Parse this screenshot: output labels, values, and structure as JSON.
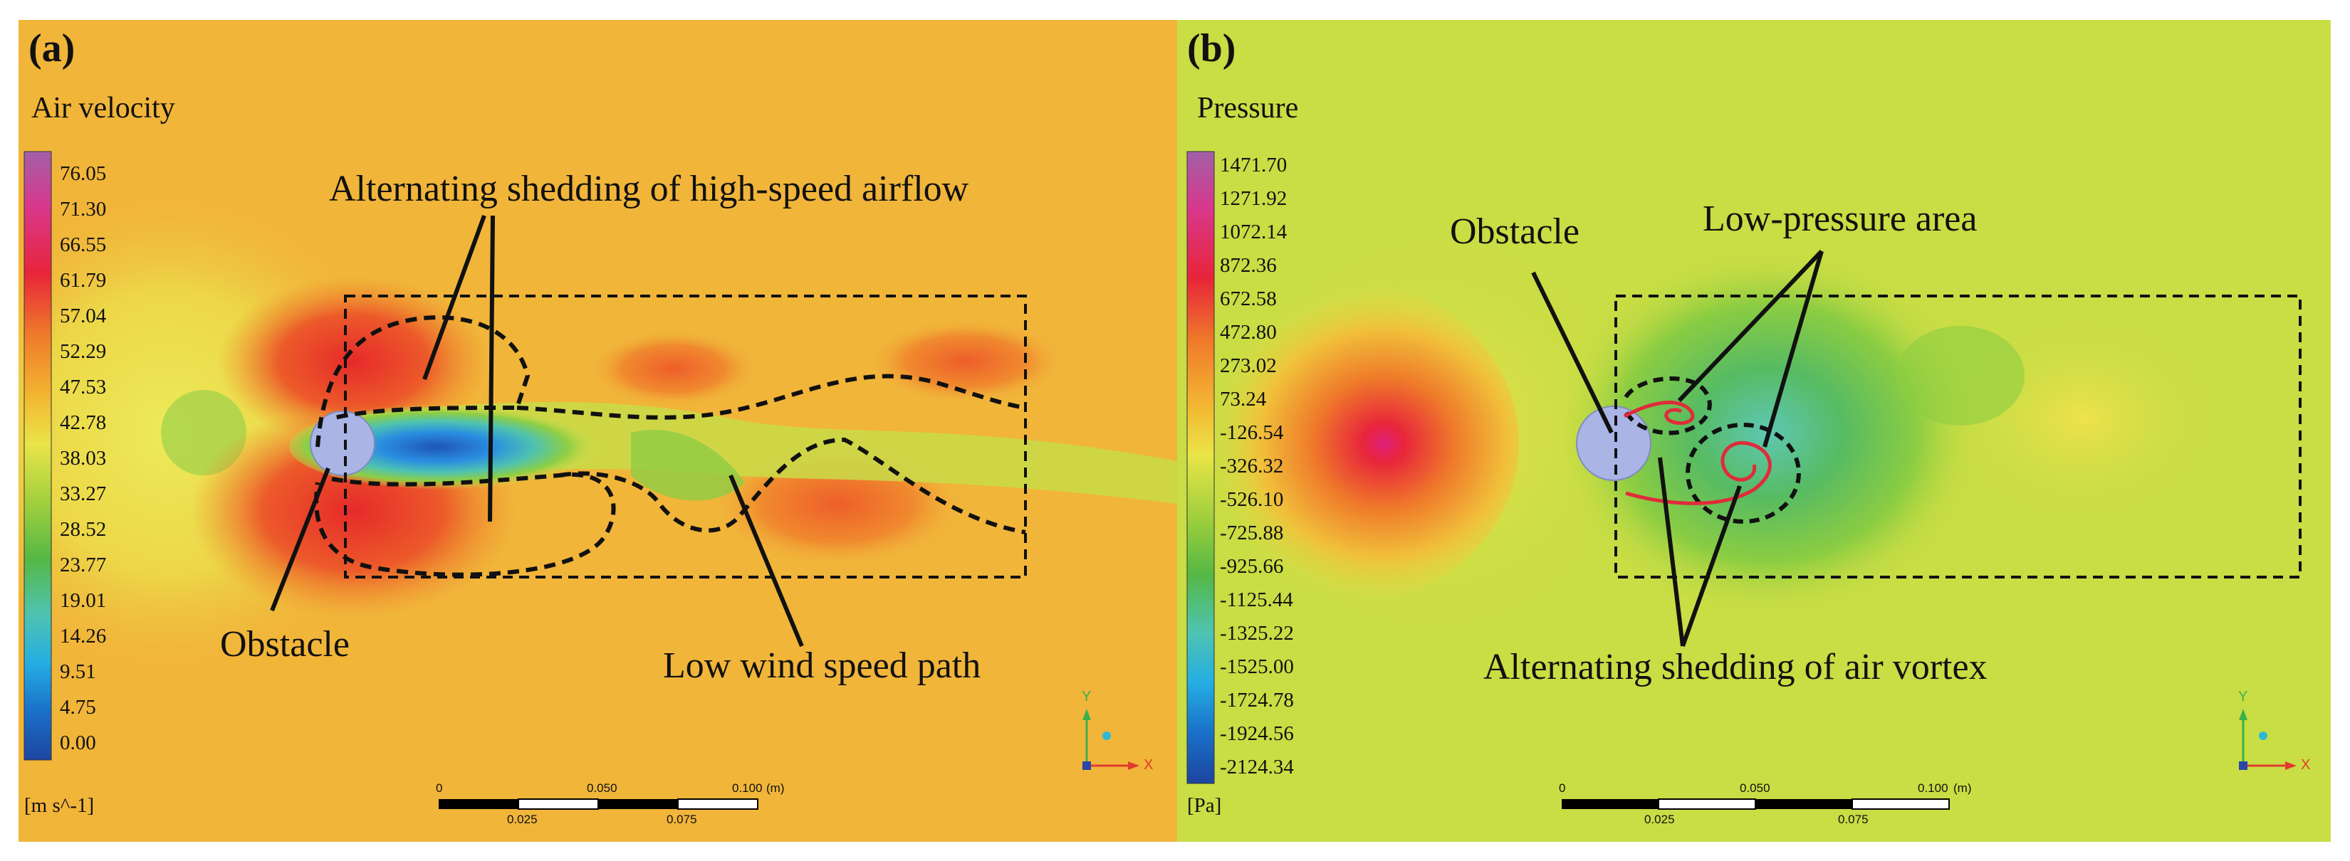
{
  "panels": [
    {
      "id": "a",
      "label": "(a)",
      "quantity": "Air velocity",
      "unit": "[m s^-1]",
      "colorbar_ticks": [
        "76.05",
        "71.30",
        "66.55",
        "61.79",
        "57.04",
        "52.29",
        "47.53",
        "42.78",
        "38.03",
        "33.27",
        "28.52",
        "23.77",
        "19.01",
        "14.26",
        "9.51",
        "4.75",
        "0.00"
      ],
      "annotations": {
        "shedding": "Alternating shedding of high-speed airflow",
        "obstacle": "Obstacle",
        "low_wind": "Low wind speed path"
      },
      "background_color": "#f1b53a"
    },
    {
      "id": "b",
      "label": "(b)",
      "quantity": "Pressure",
      "unit": "[Pa]",
      "colorbar_ticks": [
        "1471.70",
        "1271.92",
        "1072.14",
        "872.36",
        "672.58",
        "472.80",
        "273.02",
        "73.24",
        "-126.54",
        "-326.32",
        "-526.10",
        "-725.88",
        "-925.66",
        "-1125.44",
        "-1325.22",
        "-1525.00",
        "-1724.78",
        "-1924.56",
        "-2124.34"
      ],
      "annotations": {
        "obstacle": "Obstacle",
        "low_pressure": "Low-pressure area",
        "vortex": "Alternating shedding of air vortex"
      },
      "background_color": "#c9dd44"
    }
  ],
  "scale_bar": {
    "top_labels": [
      "0",
      "0.050",
      "0.100"
    ],
    "unit": "(m)",
    "bottom_labels": [
      "0.025",
      "0.075"
    ]
  },
  "axes_triad": {
    "y": "Y",
    "x": "X"
  },
  "colorbar_colors": [
    "#a25fa8",
    "#d8388c",
    "#e8243a",
    "#ef7a2a",
    "#f3b531",
    "#eae548",
    "#9fcf3c",
    "#55b845",
    "#4fc3b0",
    "#25aee3",
    "#1a70c8",
    "#1c45a0"
  ]
}
